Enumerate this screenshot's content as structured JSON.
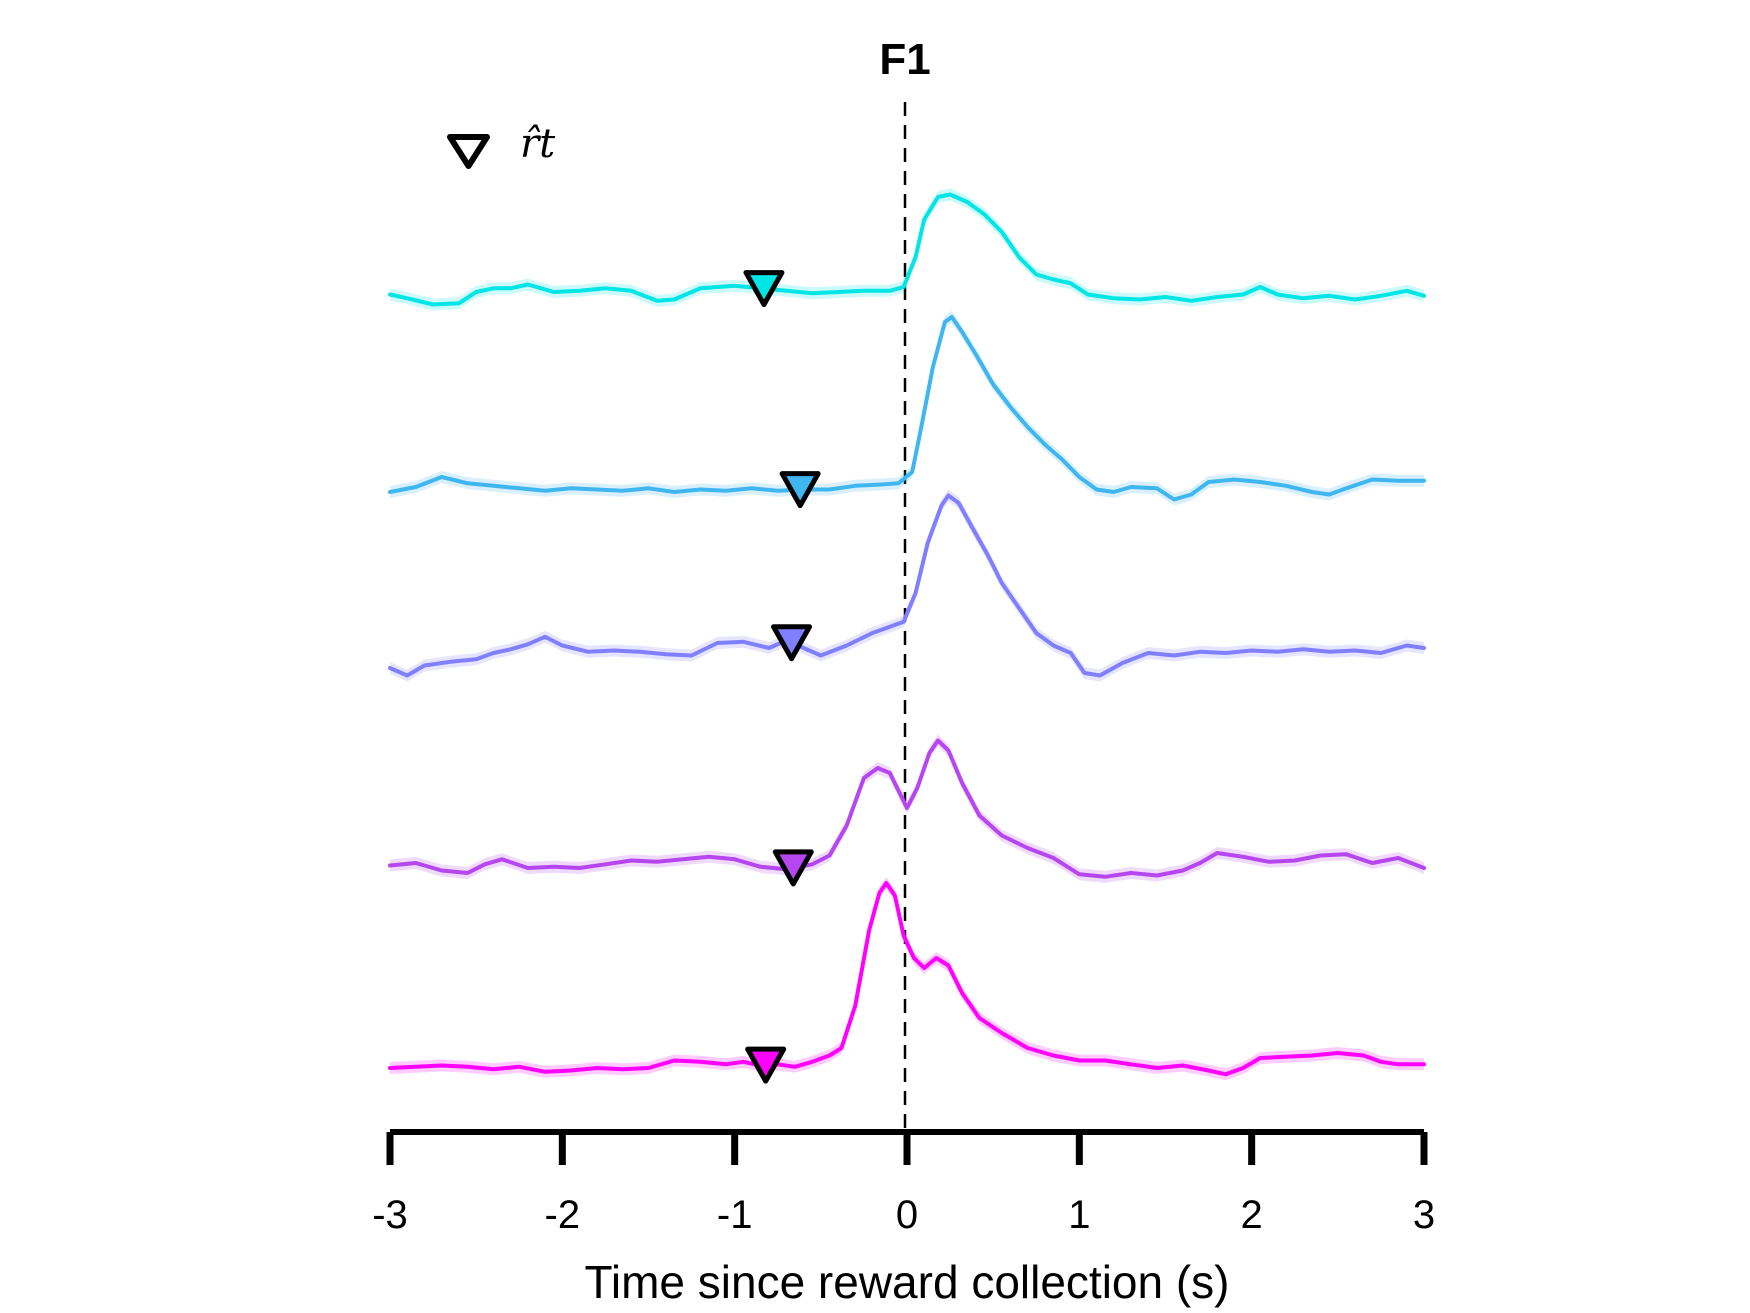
{
  "chart_data": {
    "type": "line",
    "title": "F1",
    "xlabel": "Time since reward collection (s)",
    "ylabel": "",
    "xlim": [
      -3,
      3
    ],
    "xticks": [
      -3,
      -2,
      -1,
      0,
      1,
      2,
      3
    ],
    "xtick_labels": [
      "-3",
      "-2",
      "-1",
      "0",
      "1",
      "2",
      "3"
    ],
    "y_axis_visible": false,
    "grid": false,
    "vline": {
      "x": 0,
      "style": "dashed",
      "color": "#000000"
    },
    "legend": {
      "placement": "top-left",
      "marker": "open-triangle-down",
      "label": "r̂t"
    },
    "series": [
      {
        "color": "#00e5e5",
        "baseline": 0,
        "marker_x": -0.83,
        "points": [
          [
            -3,
            0.3
          ],
          [
            -2.9,
            0.15
          ],
          [
            -2.75,
            -0.1
          ],
          [
            -2.6,
            -0.05
          ],
          [
            -2.5,
            0.4
          ],
          [
            -2.4,
            0.55
          ],
          [
            -2.3,
            0.55
          ],
          [
            -2.2,
            0.7
          ],
          [
            -2.05,
            0.4
          ],
          [
            -1.9,
            0.45
          ],
          [
            -1.75,
            0.55
          ],
          [
            -1.6,
            0.45
          ],
          [
            -1.45,
            0.05
          ],
          [
            -1.35,
            0.1
          ],
          [
            -1.2,
            0.55
          ],
          [
            -1.0,
            0.65
          ],
          [
            -0.85,
            0.55
          ],
          [
            -0.7,
            0.45
          ],
          [
            -0.55,
            0.35
          ],
          [
            -0.4,
            0.4
          ],
          [
            -0.25,
            0.45
          ],
          [
            -0.1,
            0.45
          ],
          [
            -0.02,
            0.6
          ],
          [
            0.05,
            1.8
          ],
          [
            0.1,
            3.3
          ],
          [
            0.18,
            4.2
          ],
          [
            0.25,
            4.3
          ],
          [
            0.35,
            4.0
          ],
          [
            0.45,
            3.5
          ],
          [
            0.55,
            2.8
          ],
          [
            0.65,
            1.8
          ],
          [
            0.75,
            1.1
          ],
          [
            0.85,
            0.9
          ],
          [
            0.95,
            0.75
          ],
          [
            1.05,
            0.3
          ],
          [
            1.2,
            0.15
          ],
          [
            1.35,
            0.1
          ],
          [
            1.5,
            0.2
          ],
          [
            1.65,
            0.05
          ],
          [
            1.8,
            0.2
          ],
          [
            1.95,
            0.3
          ],
          [
            2.05,
            0.6
          ],
          [
            2.15,
            0.3
          ],
          [
            2.3,
            0.15
          ],
          [
            2.45,
            0.25
          ],
          [
            2.6,
            0.1
          ],
          [
            2.75,
            0.25
          ],
          [
            2.9,
            0.45
          ],
          [
            3,
            0.25
          ]
        ]
      },
      {
        "color": "#3fb6f0",
        "baseline": 0,
        "marker_x": -0.62,
        "points": [
          [
            -3,
            0.0
          ],
          [
            -2.85,
            0.2
          ],
          [
            -2.7,
            0.6
          ],
          [
            -2.55,
            0.35
          ],
          [
            -2.4,
            0.25
          ],
          [
            -2.25,
            0.15
          ],
          [
            -2.1,
            0.05
          ],
          [
            -1.95,
            0.15
          ],
          [
            -1.8,
            0.1
          ],
          [
            -1.65,
            0.05
          ],
          [
            -1.5,
            0.15
          ],
          [
            -1.35,
            0.0
          ],
          [
            -1.2,
            0.1
          ],
          [
            -1.05,
            0.05
          ],
          [
            -0.9,
            0.15
          ],
          [
            -0.75,
            0.05
          ],
          [
            -0.6,
            0.1
          ],
          [
            -0.45,
            0.1
          ],
          [
            -0.3,
            0.25
          ],
          [
            -0.15,
            0.3
          ],
          [
            -0.05,
            0.35
          ],
          [
            0.03,
            0.8
          ],
          [
            0.08,
            2.5
          ],
          [
            0.15,
            5.0
          ],
          [
            0.22,
            6.8
          ],
          [
            0.26,
            7.0
          ],
          [
            0.32,
            6.4
          ],
          [
            0.4,
            5.5
          ],
          [
            0.5,
            4.3
          ],
          [
            0.6,
            3.4
          ],
          [
            0.7,
            2.6
          ],
          [
            0.8,
            1.9
          ],
          [
            0.9,
            1.3
          ],
          [
            1.0,
            0.6
          ],
          [
            1.1,
            0.1
          ],
          [
            1.2,
            0.0
          ],
          [
            1.3,
            0.2
          ],
          [
            1.45,
            0.15
          ],
          [
            1.55,
            -0.3
          ],
          [
            1.65,
            -0.1
          ],
          [
            1.75,
            0.4
          ],
          [
            1.9,
            0.5
          ],
          [
            2.05,
            0.4
          ],
          [
            2.2,
            0.25
          ],
          [
            2.35,
            0.0
          ],
          [
            2.45,
            -0.1
          ],
          [
            2.55,
            0.15
          ],
          [
            2.7,
            0.5
          ],
          [
            2.85,
            0.45
          ],
          [
            3,
            0.45
          ]
        ]
      },
      {
        "color": "#7f7fff",
        "baseline": 0,
        "marker_x": -0.67,
        "points": [
          [
            -3,
            0.0
          ],
          [
            -2.9,
            -0.3
          ],
          [
            -2.8,
            0.1
          ],
          [
            -2.65,
            0.25
          ],
          [
            -2.5,
            0.35
          ],
          [
            -2.4,
            0.6
          ],
          [
            -2.3,
            0.75
          ],
          [
            -2.2,
            0.95
          ],
          [
            -2.1,
            1.25
          ],
          [
            -2.0,
            0.9
          ],
          [
            -1.85,
            0.65
          ],
          [
            -1.7,
            0.7
          ],
          [
            -1.55,
            0.65
          ],
          [
            -1.4,
            0.55
          ],
          [
            -1.25,
            0.5
          ],
          [
            -1.1,
            1.0
          ],
          [
            -0.95,
            1.05
          ],
          [
            -0.8,
            0.8
          ],
          [
            -0.7,
            1.1
          ],
          [
            -0.6,
            0.8
          ],
          [
            -0.5,
            0.5
          ],
          [
            -0.35,
            0.9
          ],
          [
            -0.2,
            1.4
          ],
          [
            -0.1,
            1.65
          ],
          [
            -0.02,
            1.85
          ],
          [
            0.05,
            3.0
          ],
          [
            0.12,
            5.0
          ],
          [
            0.2,
            6.5
          ],
          [
            0.24,
            6.9
          ],
          [
            0.3,
            6.6
          ],
          [
            0.38,
            5.6
          ],
          [
            0.47,
            4.5
          ],
          [
            0.55,
            3.4
          ],
          [
            0.65,
            2.4
          ],
          [
            0.75,
            1.4
          ],
          [
            0.85,
            0.9
          ],
          [
            0.95,
            0.6
          ],
          [
            1.03,
            -0.2
          ],
          [
            1.12,
            -0.3
          ],
          [
            1.25,
            0.2
          ],
          [
            1.4,
            0.6
          ],
          [
            1.55,
            0.5
          ],
          [
            1.7,
            0.65
          ],
          [
            1.85,
            0.6
          ],
          [
            2.0,
            0.7
          ],
          [
            2.15,
            0.65
          ],
          [
            2.3,
            0.75
          ],
          [
            2.45,
            0.65
          ],
          [
            2.6,
            0.7
          ],
          [
            2.75,
            0.6
          ],
          [
            2.9,
            0.9
          ],
          [
            3,
            0.8
          ]
        ]
      },
      {
        "color": "#b647f0",
        "baseline": 0,
        "marker_x": -0.66,
        "points": [
          [
            -3,
            0.1
          ],
          [
            -2.85,
            0.2
          ],
          [
            -2.7,
            -0.1
          ],
          [
            -2.55,
            -0.2
          ],
          [
            -2.45,
            0.15
          ],
          [
            -2.35,
            0.35
          ],
          [
            -2.2,
            0.0
          ],
          [
            -2.05,
            0.05
          ],
          [
            -1.9,
            0.0
          ],
          [
            -1.75,
            0.15
          ],
          [
            -1.6,
            0.3
          ],
          [
            -1.45,
            0.25
          ],
          [
            -1.3,
            0.35
          ],
          [
            -1.15,
            0.45
          ],
          [
            -1.0,
            0.35
          ],
          [
            -0.85,
            0.05
          ],
          [
            -0.7,
            -0.05
          ],
          [
            -0.55,
            0.15
          ],
          [
            -0.45,
            0.5
          ],
          [
            -0.35,
            1.7
          ],
          [
            -0.25,
            3.6
          ],
          [
            -0.17,
            4.0
          ],
          [
            -0.1,
            3.8
          ],
          [
            -0.05,
            3.1
          ],
          [
            0.0,
            2.4
          ],
          [
            0.06,
            3.2
          ],
          [
            0.13,
            4.6
          ],
          [
            0.18,
            5.1
          ],
          [
            0.24,
            4.7
          ],
          [
            0.32,
            3.4
          ],
          [
            0.42,
            2.1
          ],
          [
            0.55,
            1.3
          ],
          [
            0.7,
            0.8
          ],
          [
            0.85,
            0.4
          ],
          [
            1.0,
            -0.25
          ],
          [
            1.15,
            -0.35
          ],
          [
            1.3,
            -0.2
          ],
          [
            1.45,
            -0.3
          ],
          [
            1.6,
            -0.1
          ],
          [
            1.7,
            0.2
          ],
          [
            1.8,
            0.6
          ],
          [
            1.95,
            0.45
          ],
          [
            2.1,
            0.25
          ],
          [
            2.25,
            0.3
          ],
          [
            2.4,
            0.5
          ],
          [
            2.55,
            0.55
          ],
          [
            2.7,
            0.2
          ],
          [
            2.85,
            0.4
          ],
          [
            3,
            0.0
          ]
        ]
      },
      {
        "color": "#ff00ff",
        "baseline": 0,
        "marker_x": -0.82,
        "points": [
          [
            -3,
            0.0
          ],
          [
            -2.85,
            0.05
          ],
          [
            -2.7,
            0.1
          ],
          [
            -2.55,
            0.05
          ],
          [
            -2.4,
            -0.05
          ],
          [
            -2.25,
            0.05
          ],
          [
            -2.1,
            -0.15
          ],
          [
            -1.95,
            -0.1
          ],
          [
            -1.8,
            0.0
          ],
          [
            -1.65,
            -0.05
          ],
          [
            -1.5,
            0.0
          ],
          [
            -1.35,
            0.3
          ],
          [
            -1.2,
            0.25
          ],
          [
            -1.05,
            0.15
          ],
          [
            -0.95,
            0.25
          ],
          [
            -0.85,
            0.1
          ],
          [
            -0.75,
            0.15
          ],
          [
            -0.65,
            0.05
          ],
          [
            -0.55,
            0.25
          ],
          [
            -0.45,
            0.5
          ],
          [
            -0.38,
            0.8
          ],
          [
            -0.3,
            2.5
          ],
          [
            -0.22,
            5.5
          ],
          [
            -0.16,
            7.0
          ],
          [
            -0.12,
            7.4
          ],
          [
            -0.07,
            6.9
          ],
          [
            -0.02,
            5.3
          ],
          [
            0.04,
            4.4
          ],
          [
            0.1,
            4.0
          ],
          [
            0.17,
            4.4
          ],
          [
            0.24,
            4.1
          ],
          [
            0.32,
            3.0
          ],
          [
            0.42,
            2.0
          ],
          [
            0.55,
            1.4
          ],
          [
            0.7,
            0.8
          ],
          [
            0.85,
            0.5
          ],
          [
            1.0,
            0.3
          ],
          [
            1.15,
            0.3
          ],
          [
            1.3,
            0.15
          ],
          [
            1.45,
            0.0
          ],
          [
            1.6,
            0.1
          ],
          [
            1.75,
            -0.1
          ],
          [
            1.85,
            -0.25
          ],
          [
            1.95,
            0.0
          ],
          [
            2.05,
            0.4
          ],
          [
            2.2,
            0.45
          ],
          [
            2.35,
            0.5
          ],
          [
            2.5,
            0.6
          ],
          [
            2.65,
            0.5
          ],
          [
            2.75,
            0.25
          ],
          [
            2.85,
            0.15
          ],
          [
            3,
            0.15
          ]
        ]
      }
    ]
  }
}
